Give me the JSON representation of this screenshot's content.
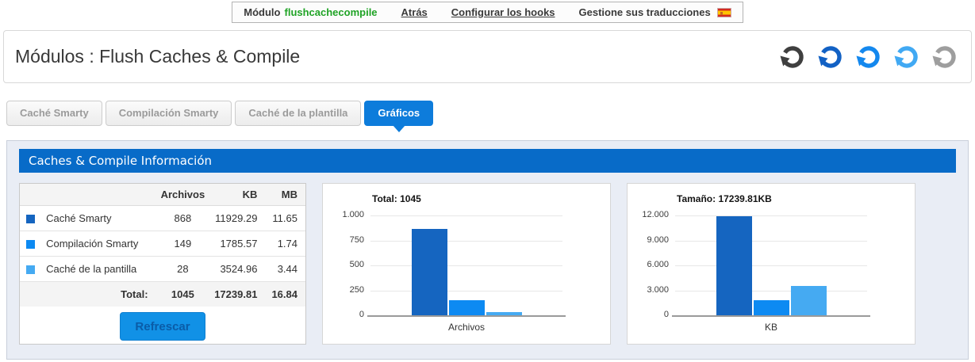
{
  "colors": {
    "tab_active": "#0d7cdb",
    "panel_header": "#086bc8",
    "panel_bg": "#e9edf5",
    "button_bg": "#1191e6",
    "button_text": "#0a5ca8",
    "green": "#1fa325"
  },
  "toolbar": {
    "module_label": "Módulo",
    "module_name": "flushcachecompile",
    "back_label": "Atrás",
    "hooks_label": "Configurar los hooks",
    "translations_label": "Gestione sus traducciones",
    "flag_icon": "spain-flag-icon"
  },
  "header": {
    "title": "Módulos : Flush Caches & Compile",
    "refresh_icons": [
      {
        "icon": "refresh-icon",
        "color": "#3f3f3f"
      },
      {
        "icon": "refresh-icon",
        "color": "#1261c4"
      },
      {
        "icon": "refresh-icon",
        "color": "#1488ee"
      },
      {
        "icon": "refresh-icon",
        "color": "#41a9f3"
      },
      {
        "icon": "refresh-icon",
        "color": "#9e9e9e"
      }
    ]
  },
  "tabs": [
    {
      "label": "Caché Smarty",
      "active": false
    },
    {
      "label": "Compilación Smarty",
      "active": false
    },
    {
      "label": "Caché de la plantilla",
      "active": false
    },
    {
      "label": "Gráficos",
      "active": true
    }
  ],
  "panel": {
    "title": "Caches & Compile Información"
  },
  "table": {
    "headers": [
      "Archivos",
      "KB",
      "MB"
    ],
    "rows": [
      {
        "swatch": "#1565c0",
        "label": "Caché Smarty",
        "archivos": "868",
        "kb": "11929.29",
        "mb": "11.65"
      },
      {
        "swatch": "#0d8af2",
        "label": "Compilación Smarty",
        "archivos": "149",
        "kb": "1785.57",
        "mb": "1.74"
      },
      {
        "swatch": "#45aaf2",
        "label": "Caché de la pantilla",
        "archivos": "28",
        "kb": "3524.96",
        "mb": "3.44"
      }
    ],
    "total": {
      "label": "Total:",
      "archivos": "1045",
      "kb": "17239.81",
      "mb": "16.84"
    },
    "refresh_button_label": "Refrescar"
  },
  "chart_data": [
    {
      "type": "bar",
      "title": "Total: 1045",
      "xlabel": "Archivos",
      "categories": [
        "Caché Smarty",
        "Compilación Smarty",
        "Caché de la pantilla"
      ],
      "values": [
        868,
        149,
        28
      ],
      "ylim": [
        0,
        1000
      ],
      "yticks": [
        0,
        250,
        500,
        750,
        1000
      ],
      "ytick_labels": [
        "0",
        "250",
        "500",
        "750",
        "1.000"
      ],
      "grid": true,
      "legend": "none",
      "bar_colors": [
        "#1565c0",
        "#0d8af2",
        "#45aaf2"
      ]
    },
    {
      "type": "bar",
      "title": "Tamaño: 17239.81KB",
      "xlabel": "KB",
      "categories": [
        "Caché Smarty",
        "Compilación Smarty",
        "Caché de la pantilla"
      ],
      "values": [
        11929.29,
        1785.57,
        3524.96
      ],
      "ylim": [
        0,
        12000
      ],
      "yticks": [
        0,
        3000,
        6000,
        9000,
        12000
      ],
      "ytick_labels": [
        "0",
        "3.000",
        "6.000",
        "9.000",
        "12.000"
      ],
      "grid": true,
      "legend": "none",
      "bar_colors": [
        "#1565c0",
        "#0d8af2",
        "#45aaf2"
      ]
    }
  ]
}
